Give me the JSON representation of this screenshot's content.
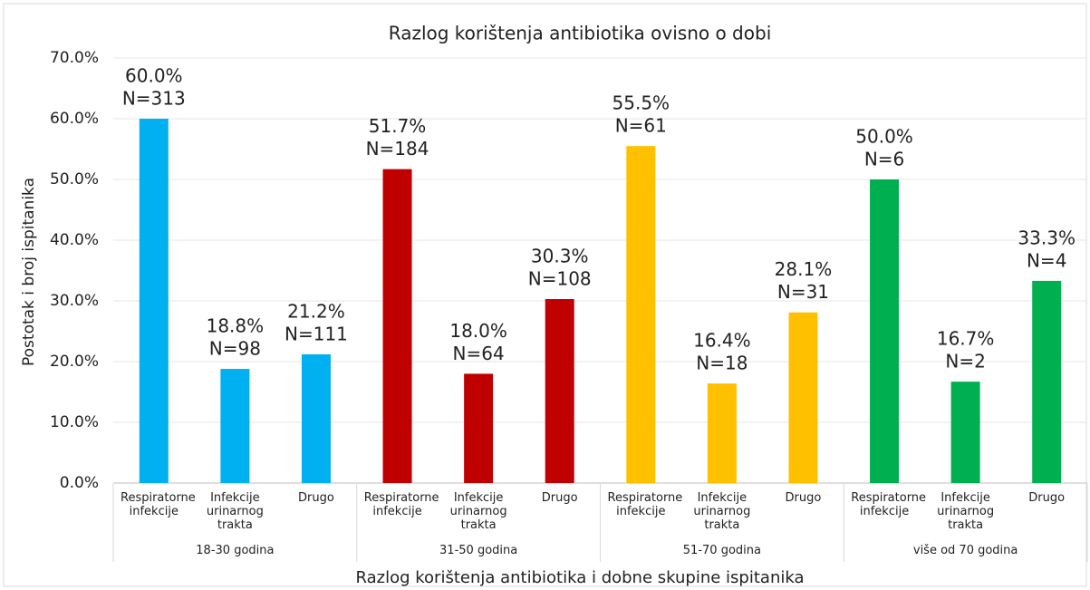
{
  "chart_data": {
    "type": "bar",
    "title": "Razlog korištenja antibiotika ovisno o dobi",
    "xlabel": "Razlog korištenja antibiotika i dobne skupine ispitanika",
    "ylabel": "Postotak i broj ispitanika",
    "categories": [
      "Respiratorne infekcije",
      "Infekcije urinarnog trakta",
      "Drugo"
    ],
    "series": [
      {
        "name": "18-30 godina",
        "color": "#00b0f0",
        "values": [
          60.0,
          18.8,
          21.2
        ],
        "value_labels": [
          "60.0%",
          "18.8%",
          "21.2%"
        ],
        "n_labels": [
          "N=313",
          "N=98",
          "N=111"
        ]
      },
      {
        "name": "31-50 godina",
        "color": "#c00000",
        "values": [
          51.7,
          18.0,
          30.3
        ],
        "value_labels": [
          "51.7%",
          "18.0%",
          "30.3%"
        ],
        "n_labels": [
          "N=184",
          "N=64",
          "N=108"
        ]
      },
      {
        "name": "51-70 godina",
        "color": "#ffc000",
        "values": [
          55.5,
          16.4,
          28.1
        ],
        "value_labels": [
          "55.5%",
          "16.4%",
          "28.1%"
        ],
        "n_labels": [
          "N=61",
          "N=18",
          "N=31"
        ]
      },
      {
        "name": "više od 70 godina",
        "color": "#00b050",
        "values": [
          50.0,
          16.7,
          33.3
        ],
        "value_labels": [
          "50.0%",
          "16.7%",
          "33.3%"
        ],
        "n_labels": [
          "N=6",
          "N=2",
          "N=4"
        ]
      }
    ],
    "ylim": [
      0,
      70
    ],
    "yticks": [
      {
        "value": 0,
        "label": "0.0%"
      },
      {
        "value": 10,
        "label": "10.0%"
      },
      {
        "value": 20,
        "label": "20.0%"
      },
      {
        "value": 30,
        "label": "30.0%"
      },
      {
        "value": 40,
        "label": "40.0%"
      },
      {
        "value": 50,
        "label": "50.0%"
      },
      {
        "value": 60,
        "label": "60.0%"
      },
      {
        "value": 70,
        "label": "70.0%"
      }
    ],
    "grid": true
  }
}
